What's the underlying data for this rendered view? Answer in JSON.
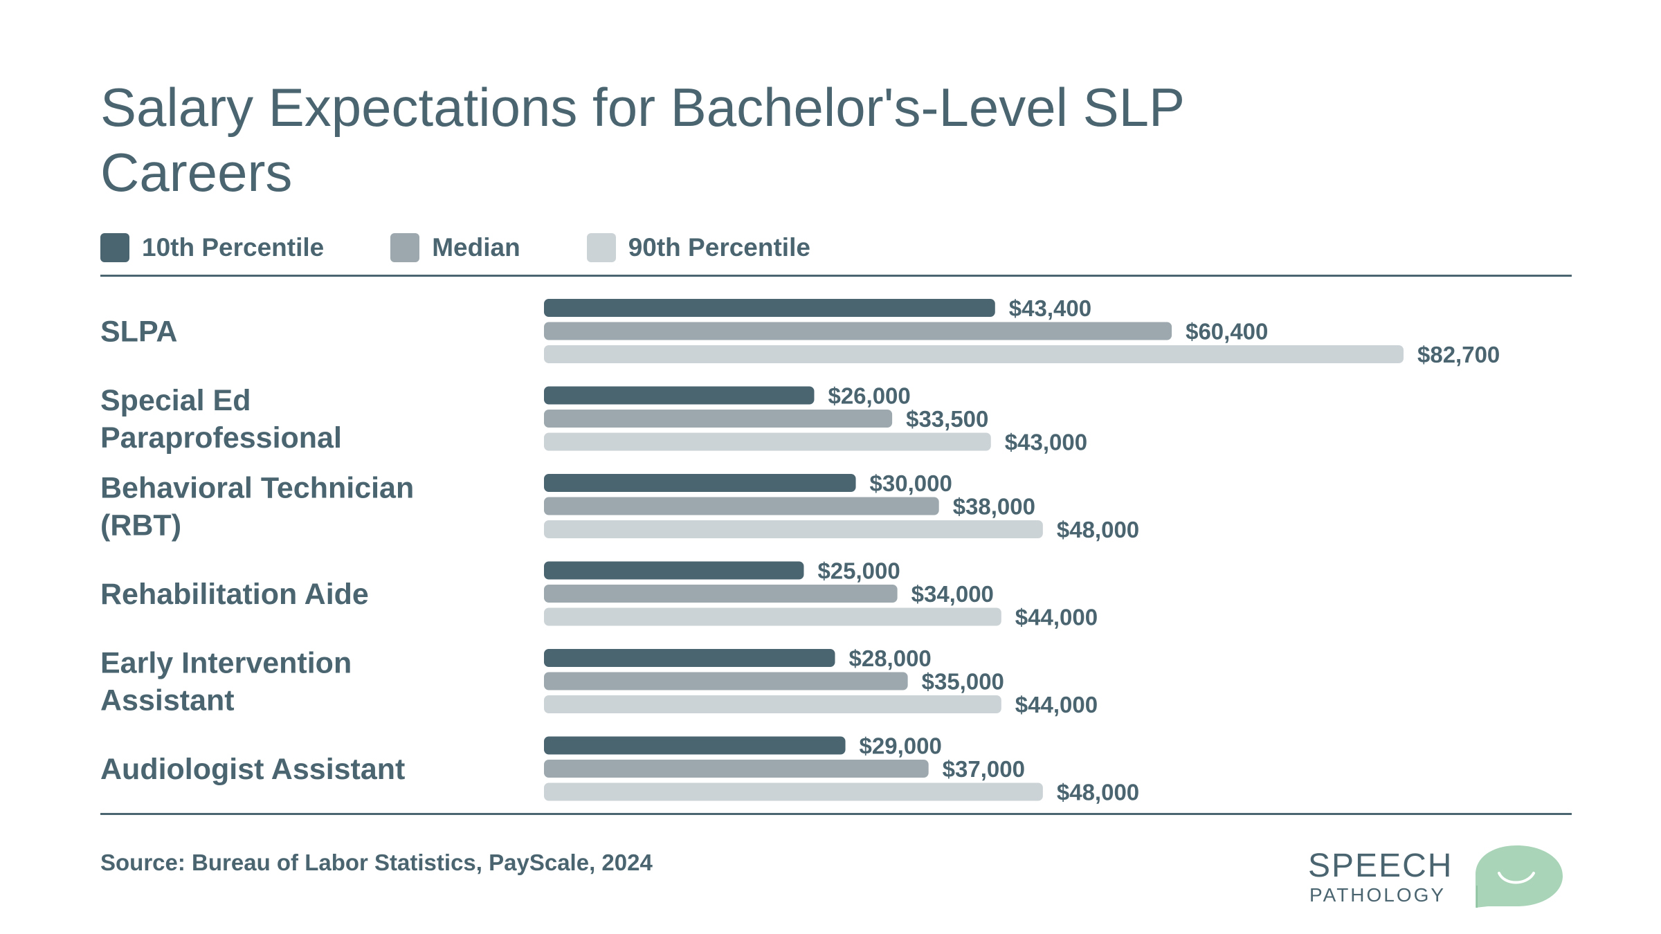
{
  "title": "Salary Expectations for Bachelor's-Level SLP Careers",
  "legend": [
    {
      "label": "10th Percentile",
      "color": "#4a6470"
    },
    {
      "label": "Median",
      "color": "#9ca8ad"
    },
    {
      "label": "90th Percentile",
      "color": "#ccd3d6"
    }
  ],
  "source": "Source: Bureau of Labor Statistics, PayScale, 2024",
  "logo": {
    "line1": "SPEECH",
    "line2": "PATHOLOGY",
    "accent_color": "#a9d4b8",
    "icon": "speech-bubble-smile-icon"
  },
  "chart_data": {
    "type": "bar",
    "orientation": "horizontal",
    "title": "Salary Expectations for Bachelor's-Level SLP Careers",
    "xlabel": "",
    "ylabel": "",
    "grid": false,
    "legend_position": "top-left",
    "categories": [
      [
        "SLPA"
      ],
      [
        "Special Ed",
        "Paraprofessional"
      ],
      [
        "Behavioral Technician",
        "(RBT)"
      ],
      [
        "Rehabilitation Aide"
      ],
      [
        "Early Intervention",
        "Assistant"
      ],
      [
        "Audiologist Assistant"
      ]
    ],
    "series": [
      {
        "name": "10th Percentile",
        "color": "#4a6470",
        "values": [
          43400,
          26000,
          30000,
          25000,
          28000,
          29000
        ],
        "labels": [
          "$43,400",
          "$26,000",
          "$30,000",
          "$25,000",
          "$28,000",
          "$29,000"
        ]
      },
      {
        "name": "Median",
        "color": "#9ca8ad",
        "values": [
          60400,
          33500,
          38000,
          34000,
          35000,
          37000
        ],
        "labels": [
          "$60,400",
          "$33,500",
          "$38,000",
          "$34,000",
          "$35,000",
          "$37,000"
        ]
      },
      {
        "name": "90th Percentile",
        "color": "#ccd3d6",
        "values": [
          82700,
          43000,
          48000,
          44000,
          44000,
          48000
        ],
        "labels": [
          "$82,700",
          "$43,000",
          "$48,000",
          "$44,000",
          "$44,000",
          "$48,000"
        ]
      }
    ]
  }
}
